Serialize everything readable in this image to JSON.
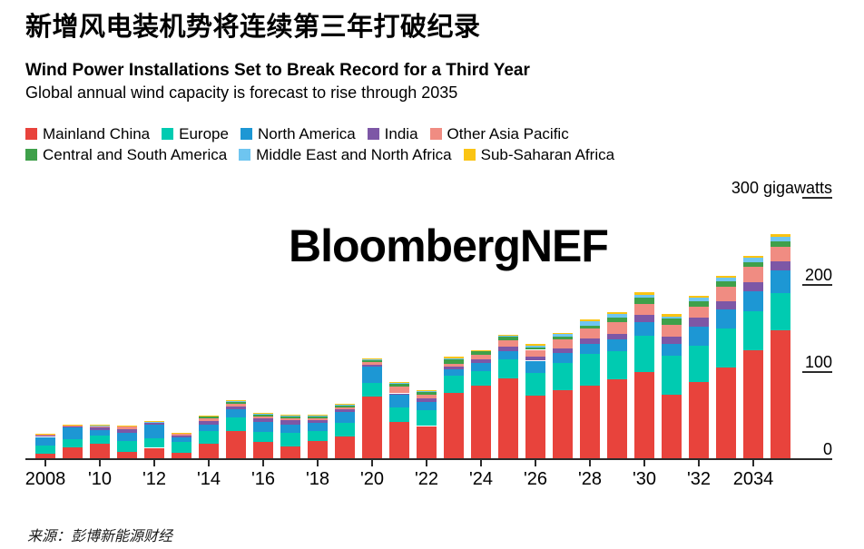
{
  "header": {
    "title_zh": "新增风电装机势将连续第三年打破纪录",
    "title_en": "Wind Power Installations Set to Break Record for a Third Year",
    "subtitle": "Global annual wind capacity is forecast to rise through 2035"
  },
  "watermark": "BloombergNEF",
  "source_line": "来源：彭博新能源财经",
  "chart_data": {
    "type": "bar",
    "stacked": true,
    "unit": "gigawatts",
    "ylim": [
      0,
      300
    ],
    "grid": false,
    "legend_position": "top",
    "y_ticks": [
      {
        "value": 300,
        "label": "300 gigawatts",
        "dash": true
      },
      {
        "value": 200,
        "label": "200",
        "dash": true
      },
      {
        "value": 100,
        "label": "100",
        "dash": true
      },
      {
        "value": 0,
        "label": "0",
        "dash": false
      }
    ],
    "years": [
      2008,
      2009,
      2010,
      2011,
      2012,
      2013,
      2014,
      2015,
      2016,
      2017,
      2018,
      2019,
      2020,
      2021,
      2022,
      2023,
      2024,
      2025,
      2026,
      2027,
      2028,
      2029,
      2030,
      2031,
      2032,
      2033,
      2034,
      2035
    ],
    "x_ticks": [
      {
        "year": 2008,
        "label": "2008"
      },
      {
        "year": 2010,
        "label": "'10"
      },
      {
        "year": 2012,
        "label": "'12"
      },
      {
        "year": 2014,
        "label": "'14"
      },
      {
        "year": 2016,
        "label": "'16"
      },
      {
        "year": 2018,
        "label": "'18"
      },
      {
        "year": 2020,
        "label": "'20"
      },
      {
        "year": 2022,
        "label": "'22"
      },
      {
        "year": 2024,
        "label": "'24"
      },
      {
        "year": 2026,
        "label": "'26"
      },
      {
        "year": 2028,
        "label": "'28"
      },
      {
        "year": 2030,
        "label": "'30"
      },
      {
        "year": 2032,
        "label": "'32"
      },
      {
        "year": 2034,
        "label": "2034"
      }
    ],
    "series": [
      {
        "name": "Mainland China",
        "key": "mainland-china",
        "color": "#E8433C",
        "values": [
          6,
          13,
          17.5,
          7.5,
          12.5,
          6.5,
          17.5,
          32,
          19.5,
          14,
          20.5,
          25.5,
          71.5,
          42.5,
          37.5,
          76,
          84,
          92.5,
          72,
          79,
          84,
          91.5,
          99.5,
          73.5,
          88,
          105,
          124.5,
          147
        ]
      },
      {
        "name": "Europe",
        "key": "europe",
        "color": "#00CBB1",
        "values": [
          9,
          9.5,
          9.5,
          12.5,
          10.5,
          13,
          14,
          15,
          11.5,
          15.5,
          11.5,
          15.5,
          15.5,
          16,
          18.5,
          19,
          17,
          22,
          26.5,
          31,
          36.5,
          32,
          41.5,
          45,
          41.5,
          44,
          45,
          43
        ]
      },
      {
        "name": "North America",
        "key": "north-america",
        "color": "#1D97D4",
        "values": [
          10,
          13,
          6,
          10,
          16.5,
          5,
          7.5,
          9.5,
          11,
          9.5,
          9.5,
          12.5,
          18.5,
          14.5,
          9.5,
          8,
          9,
          9,
          14,
          11,
          11.5,
          13,
          16,
          13,
          22.5,
          22.5,
          22.5,
          26
        ]
      },
      {
        "name": "India",
        "key": "india",
        "color": "#7D57A6",
        "values": [
          1.8,
          1.4,
          2.8,
          3.8,
          1.3,
          1.7,
          3.8,
          3.8,
          4.8,
          5.2,
          2.4,
          2.8,
          2.4,
          2,
          4,
          3,
          4,
          5,
          5,
          6,
          6,
          7,
          8,
          8.5,
          9.5,
          9.5,
          10.5,
          11
        ]
      },
      {
        "name": "Other Asia Pacific",
        "key": "other-asia-pacific",
        "color": "#F08C82",
        "values": [
          1.7,
          1.3,
          1.7,
          2.8,
          1,
          2.3,
          3.5,
          2.4,
          1.7,
          2.4,
          2.8,
          2.8,
          2.8,
          8.3,
          3.5,
          3,
          5,
          7,
          7.5,
          9.5,
          11,
          13,
          13,
          14,
          13,
          16.5,
          17.5,
          16.5
        ]
      },
      {
        "name": "Central and South America",
        "key": "central-south-america",
        "color": "#3FA04A",
        "values": [
          0.3,
          0.5,
          0.7,
          1.4,
          0.7,
          1.2,
          3,
          2.8,
          3,
          2.8,
          2.8,
          2.8,
          2.8,
          3,
          4,
          5,
          4.5,
          4.5,
          3,
          4,
          4,
          5.5,
          7,
          6.5,
          6,
          6,
          6,
          6
        ]
      },
      {
        "name": "Middle East and North Africa",
        "key": "middle-east-north-africa",
        "color": "#6EC5F0",
        "values": [
          0.2,
          0.3,
          0.3,
          0.3,
          0.2,
          0.3,
          0.4,
          0.5,
          0.5,
          0.6,
          0.5,
          0.6,
          0.6,
          0.5,
          0.5,
          1,
          0.6,
          1.2,
          1.7,
          2.4,
          4.5,
          4,
          3.5,
          3,
          4.5,
          4,
          4.5,
          5.5
        ]
      },
      {
        "name": "Sub-Saharan Africa",
        "key": "sub-saharan-africa",
        "color": "#FAC413",
        "values": [
          0.1,
          0.1,
          0.1,
          0.2,
          0.1,
          0.2,
          0.3,
          1,
          0.6,
          1,
          0.7,
          1,
          0.8,
          1.7,
          0.8,
          2,
          0.6,
          1.5,
          1.7,
          1.7,
          2.5,
          2.3,
          2.4,
          2.4,
          2.4,
          2.4,
          2.4,
          3
        ]
      }
    ],
    "legend_rows": [
      [
        0,
        1,
        2,
        3,
        4
      ],
      [
        5,
        6,
        7
      ]
    ]
  }
}
